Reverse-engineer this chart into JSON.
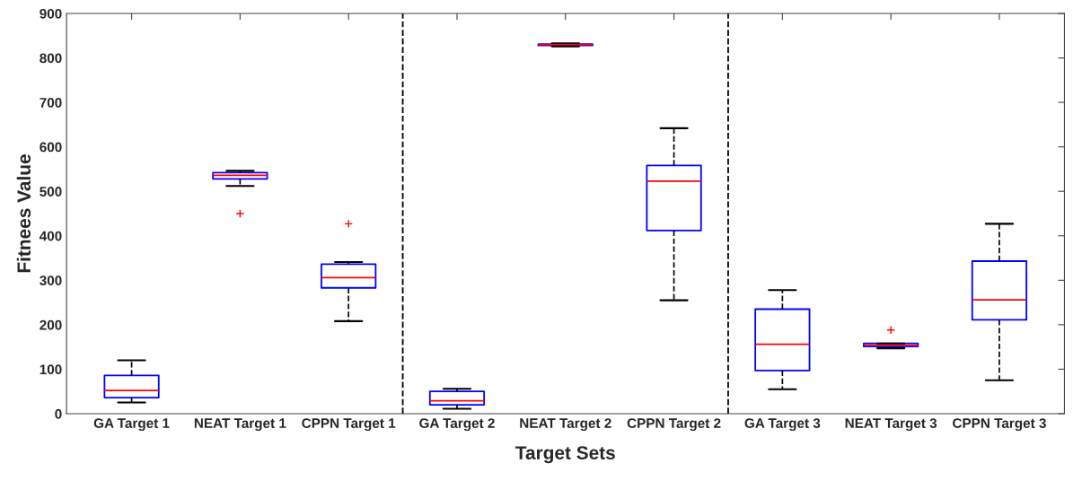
{
  "chart_data": {
    "type": "box",
    "xlabel": "Target Sets",
    "ylabel": "Fitnees Value",
    "categories": [
      "GA Target 1",
      "NEAT Target 1",
      "CPPN Target 1",
      "GA Target 2",
      "NEAT Target 2",
      "CPPN Target 2",
      "GA Target 3",
      "NEAT Target 3",
      "CPPN Target 3"
    ],
    "series": [
      {
        "color": "#0000ff",
        "boxes": [
          {
            "low": 25,
            "q1": 36,
            "median": 52,
            "q3": 86,
            "high": 120
          },
          {
            "low": 512,
            "q1": 528,
            "median": 536,
            "q3": 542,
            "high": 546,
            "outliers": [
              450
            ]
          },
          {
            "low": 208,
            "q1": 283,
            "median": 306,
            "q3": 336,
            "high": 341,
            "outliers": [
              427
            ]
          },
          {
            "low": 11,
            "q1": 20,
            "median": 29,
            "q3": 50,
            "high": 56
          },
          {
            "low": 826,
            "q1": 828,
            "median": 830,
            "q3": 831,
            "high": 833
          },
          {
            "low": 255,
            "q1": 412,
            "median": 523,
            "q3": 558,
            "high": 642
          },
          {
            "low": 55,
            "q1": 97,
            "median": 156,
            "q3": 235,
            "high": 278
          },
          {
            "low": 147,
            "q1": 151,
            "median": 154,
            "q3": 158,
            "high": 158,
            "outliers": [
              188
            ]
          },
          {
            "low": 75,
            "q1": 211,
            "median": 256,
            "q3": 343,
            "high": 427
          }
        ]
      }
    ],
    "ylim": [
      0,
      900
    ],
    "yticks": [
      0,
      100,
      200,
      300,
      400,
      500,
      600,
      700,
      800,
      900
    ],
    "grid": false,
    "legend": false
  }
}
